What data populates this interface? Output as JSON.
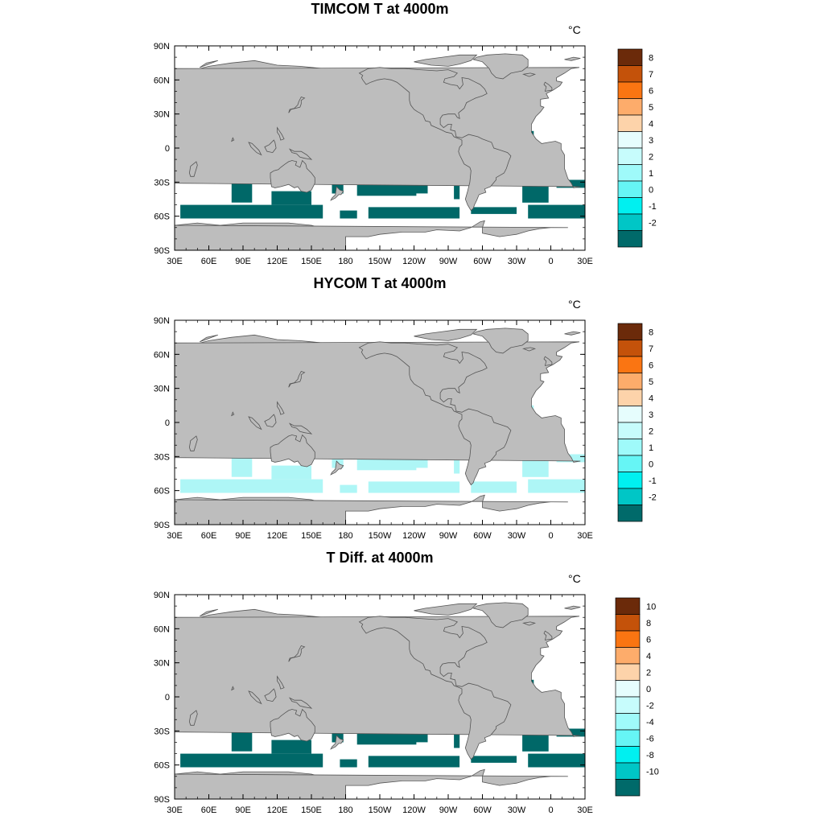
{
  "colors": {
    "land": "#bdbdbd",
    "coast": "#555555",
    "ocean_empty": "#ffffff"
  },
  "longitude_labels": [
    "30E",
    "60E",
    "90E",
    "120E",
    "150E",
    "180",
    "150W",
    "120W",
    "90W",
    "60W",
    "30W",
    "0",
    "30E"
  ],
  "latitude_labels": [
    "90N",
    "60N",
    "30N",
    "0",
    "30S",
    "60S",
    "90S"
  ],
  "panels": [
    {
      "title": "TIMCOM T at 4000m",
      "unit_label": "°C",
      "colorbar": {
        "labels": [
          "8",
          "7",
          "6",
          "5",
          "4",
          "3",
          "2",
          "1",
          "0",
          "-1",
          "-2"
        ],
        "colors": [
          "#6b2a0a",
          "#c4520a",
          "#fa7512",
          "#fdac6b",
          "#fdd3aa",
          "#e6fdfd",
          "#c7fcfc",
          "#9ffafa",
          "#66f5f5",
          "#00f0f0",
          "#00c6c6",
          "#006a6a"
        ]
      },
      "dominant_color": "#006868"
    },
    {
      "title": "HYCOM T at 4000m",
      "unit_label": "°C",
      "colorbar": {
        "labels": [
          "8",
          "7",
          "6",
          "5",
          "4",
          "3",
          "2",
          "1",
          "0",
          "-1",
          "-2"
        ],
        "colors": [
          "#6b2a0a",
          "#c4520a",
          "#fa7512",
          "#fdac6b",
          "#fdd3aa",
          "#e6fdfd",
          "#c7fcfc",
          "#9ffafa",
          "#66f5f5",
          "#00f0f0",
          "#00c6c6",
          "#006a6a"
        ]
      },
      "dominant_color": "#aef6f6"
    },
    {
      "title": "T Diff. at 4000m",
      "unit_label": "°C",
      "colorbar": {
        "labels": [
          "10",
          "8",
          "6",
          "4",
          "2",
          "0",
          "-2",
          "-4",
          "-6",
          "-8",
          "-10"
        ],
        "colors": [
          "#6b2a0a",
          "#c4520a",
          "#fa7512",
          "#fdac6b",
          "#fdd3aa",
          "#e6fdfd",
          "#c7fcfc",
          "#9ffafa",
          "#66f5f5",
          "#00f0f0",
          "#00c6c6",
          "#006a6a"
        ]
      },
      "dominant_color": "#006868"
    }
  ]
}
